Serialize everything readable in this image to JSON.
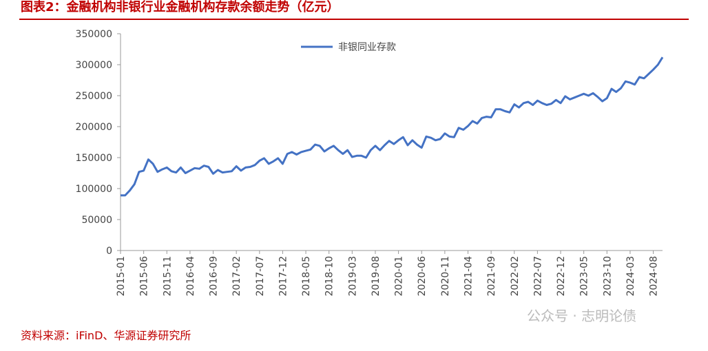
{
  "chart_data": {
    "type": "line",
    "title": "图表2：金融机构非银行业金融机构存款余额走势（亿元）",
    "source": "资料来源：iFinD、华源证券研究所",
    "watermark": "公众号 · 志明论债",
    "categories": [
      "2015-01",
      null,
      null,
      null,
      null,
      "2015-06",
      null,
      null,
      null,
      null,
      "2015-11",
      null,
      null,
      null,
      null,
      "2016-04",
      null,
      null,
      null,
      null,
      "2016-09",
      null,
      null,
      null,
      null,
      "2017-02",
      null,
      null,
      null,
      null,
      "2017-07",
      null,
      null,
      null,
      null,
      "2017-12",
      null,
      null,
      null,
      null,
      "2018-05",
      null,
      null,
      null,
      null,
      "2018-10",
      null,
      null,
      null,
      null,
      "2019-03",
      null,
      null,
      null,
      null,
      "2019-08",
      null,
      null,
      null,
      null,
      "2020-01",
      null,
      null,
      null,
      null,
      "2020-06",
      null,
      null,
      null,
      null,
      "2020-11",
      null,
      null,
      null,
      null,
      "2021-04",
      null,
      null,
      null,
      null,
      "2021-09",
      null,
      null,
      null,
      null,
      "2022-02",
      null,
      null,
      null,
      null,
      "2022-07",
      null,
      null,
      null,
      null,
      "2022-12",
      null,
      null,
      null,
      null,
      "2023-05",
      null,
      null,
      null,
      null,
      "2023-10",
      null,
      null,
      null,
      null,
      "2024-03",
      null,
      null,
      null,
      null,
      "2024-08",
      null,
      null
    ],
    "series": [
      {
        "name": "非银同业存款",
        "color": "#4472c4",
        "values": [
          89000,
          89000,
          97000,
          107000,
          127000,
          129000,
          147000,
          140000,
          127000,
          131000,
          134000,
          128000,
          126000,
          134000,
          125000,
          129000,
          133000,
          132000,
          137000,
          135000,
          124000,
          130000,
          126000,
          127000,
          128000,
          136000,
          129000,
          134000,
          135000,
          138000,
          145000,
          149000,
          140000,
          144000,
          149000,
          140000,
          156000,
          159000,
          155000,
          159000,
          161000,
          163000,
          171000,
          169000,
          160000,
          165000,
          169000,
          162000,
          156000,
          162000,
          151000,
          153000,
          153000,
          150000,
          162000,
          169000,
          162000,
          170000,
          177000,
          172000,
          178000,
          183000,
          170000,
          178000,
          171000,
          166000,
          184000,
          182000,
          178000,
          180000,
          189000,
          184000,
          183000,
          198000,
          195000,
          201000,
          209000,
          205000,
          214000,
          216000,
          215000,
          228000,
          228000,
          225000,
          223000,
          236000,
          231000,
          238000,
          240000,
          235000,
          242000,
          238000,
          235000,
          237000,
          243000,
          238000,
          249000,
          244000,
          247000,
          250000,
          253000,
          250000,
          254000,
          248000,
          241000,
          246000,
          261000,
          256000,
          262000,
          273000,
          271000,
          268000,
          280000,
          278000,
          285000,
          292000,
          300000,
          312000
        ]
      }
    ],
    "ylim": [
      0,
      350000
    ],
    "yticks": [
      0,
      50000,
      100000,
      150000,
      200000,
      250000,
      300000,
      350000
    ],
    "grid": false,
    "legend": "top"
  }
}
